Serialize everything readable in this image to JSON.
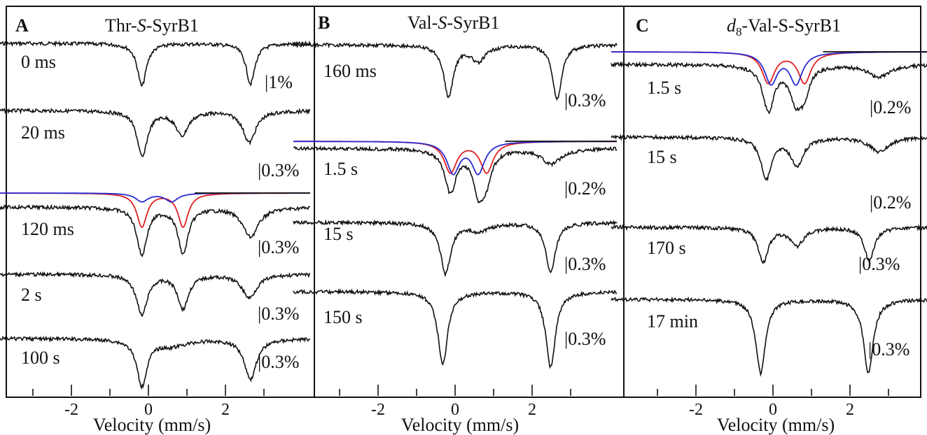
{
  "axis_label": "Velocity (mm/s)",
  "colors": {
    "data": "#111111",
    "fit_red": "#e02020",
    "fit_blue": "#2a2ad0",
    "fit_black": "#111111"
  },
  "chart_data": [
    {
      "type": "line",
      "panel": "A",
      "title_pre": "Thr-",
      "title_ital": "S",
      "title_post": "-SyrB1",
      "xlabel": "Velocity (mm/s)",
      "ylabel": "",
      "xlim": [
        -4.2,
        4.2
      ],
      "xticks": [
        -2,
        0,
        2
      ],
      "traces": [
        {
          "label": "0 ms",
          "scale": "|1%",
          "lines": [
            {
              "center": -0.17,
              "depth": 0.78,
              "width": 0.14
            },
            {
              "center": 2.65,
              "depth": 0.74,
              "width": 0.14
            }
          ]
        },
        {
          "label": "20 ms",
          "scale": "|0.3%",
          "lines": [
            {
              "center": -0.16,
              "depth": 0.8,
              "width": 0.16
            },
            {
              "center": 0.87,
              "depth": 0.42,
              "width": 0.2
            },
            {
              "center": 2.62,
              "depth": 0.55,
              "width": 0.2
            }
          ]
        },
        {
          "label": "120 ms",
          "scale": "|0.3%",
          "fit": true,
          "lines": [
            {
              "center": -0.17,
              "depth": 0.8,
              "width": 0.16
            },
            {
              "center": 0.9,
              "depth": 0.78,
              "width": 0.16
            },
            {
              "center": 2.65,
              "depth": 0.5,
              "width": 0.25
            }
          ]
        },
        {
          "label": "2 s",
          "scale": "|0.3%",
          "lines": [
            {
              "center": -0.17,
              "depth": 0.78,
              "width": 0.17
            },
            {
              "center": 0.9,
              "depth": 0.65,
              "width": 0.17
            },
            {
              "center": 2.62,
              "depth": 0.45,
              "width": 0.23
            }
          ]
        },
        {
          "label": "100 s",
          "scale": "|0.3%",
          "lines": [
            {
              "center": -0.17,
              "depth": 0.8,
              "width": 0.16
            },
            {
              "center": 0.6,
              "depth": 0.12,
              "width": 0.5
            },
            {
              "center": 2.65,
              "depth": 0.7,
              "width": 0.19
            }
          ]
        }
      ]
    },
    {
      "type": "line",
      "panel": "B",
      "title_pre": "Val-",
      "title_ital": "S",
      "title_post": "-SyrB1",
      "xlabel": "Velocity (mm/s)",
      "ylabel": "",
      "xlim": [
        -4.2,
        4.2
      ],
      "xticks": [
        -2,
        0,
        2
      ],
      "traces": [
        {
          "label": "160 ms",
          "scale": "|0.3%",
          "lines": [
            {
              "center": -0.17,
              "depth": 0.8,
              "width": 0.15
            },
            {
              "center": 0.6,
              "depth": 0.25,
              "width": 0.22
            },
            {
              "center": 2.65,
              "depth": 0.85,
              "width": 0.14
            }
          ]
        },
        {
          "label": "1.5 s",
          "scale": "|0.2%",
          "fit": true,
          "lines": [
            {
              "center": -0.12,
              "depth": 0.78,
              "width": 0.18
            },
            {
              "center": 0.62,
              "depth": 0.78,
              "width": 0.18
            },
            {
              "center": 0.82,
              "depth": 0.42,
              "width": 0.16
            },
            {
              "center": 2.5,
              "depth": 0.28,
              "width": 0.3
            }
          ]
        },
        {
          "label": "15 s",
          "scale": "|0.3%",
          "lines": [
            {
              "center": -0.25,
              "depth": 0.8,
              "width": 0.16
            },
            {
              "center": 0.62,
              "depth": 0.12,
              "width": 0.35
            },
            {
              "center": 2.48,
              "depth": 0.8,
              "width": 0.15
            }
          ]
        },
        {
          "label": "150 s",
          "scale": "|0.3%",
          "lines": [
            {
              "center": -0.32,
              "depth": 0.82,
              "width": 0.15
            },
            {
              "center": 2.48,
              "depth": 0.84,
              "width": 0.15
            }
          ]
        }
      ]
    },
    {
      "type": "line",
      "panel": "C",
      "title_pre": "d",
      "title_sub": "8",
      "title_post": "-Val-S-SyrB1",
      "xlabel": "Velocity (mm/s)",
      "ylabel": "",
      "xlim": [
        -4.2,
        4.2
      ],
      "xticks": [
        -2,
        0,
        2
      ],
      "traces": [
        {
          "label": "1.5 s",
          "scale": "|0.2%",
          "fit": true,
          "lines": [
            {
              "center": -0.12,
              "depth": 0.8,
              "width": 0.18
            },
            {
              "center": 0.6,
              "depth": 0.62,
              "width": 0.2
            },
            {
              "center": 0.82,
              "depth": 0.4,
              "width": 0.15
            },
            {
              "center": 2.75,
              "depth": 0.22,
              "width": 0.35
            }
          ]
        },
        {
          "label": "15 s",
          "scale": "|0.2%",
          "lines": [
            {
              "center": -0.17,
              "depth": 0.8,
              "width": 0.17
            },
            {
              "center": 0.62,
              "depth": 0.55,
              "width": 0.2
            },
            {
              "center": 2.75,
              "depth": 0.28,
              "width": 0.3
            }
          ]
        },
        {
          "label": "170 s",
          "scale": "|0.3%",
          "lines": [
            {
              "center": -0.25,
              "depth": 0.8,
              "width": 0.16
            },
            {
              "center": 0.62,
              "depth": 0.42,
              "width": 0.22
            },
            {
              "center": 2.5,
              "depth": 0.8,
              "width": 0.15
            }
          ]
        },
        {
          "label": "17 min",
          "scale": "|0.3%",
          "lines": [
            {
              "center": -0.32,
              "depth": 0.85,
              "width": 0.15
            },
            {
              "center": 2.48,
              "depth": 0.85,
              "width": 0.15
            }
          ]
        }
      ]
    }
  ]
}
